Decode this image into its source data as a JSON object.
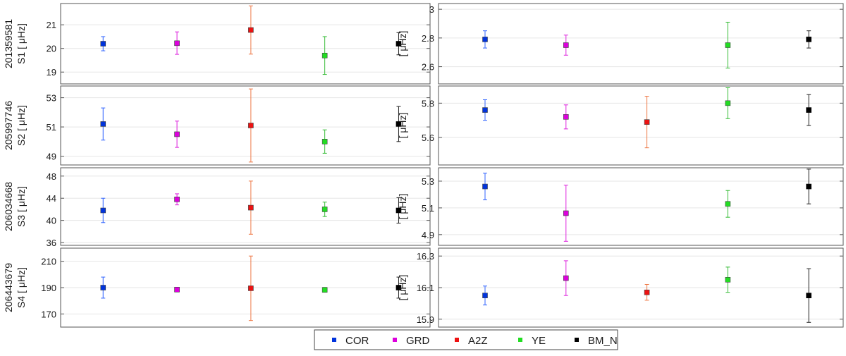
{
  "chart_data": {
    "type": "errorbar-scatter",
    "series_names": [
      "COR",
      "GRD",
      "A2Z",
      "YE",
      "BM_N"
    ],
    "colors": {
      "COR": "#0033dd",
      "GRD": "#dd00dd",
      "A2Z": "#ee1111",
      "YE": "#22dd22",
      "BM_N": "#000000"
    },
    "errorbar_colors": {
      "COR": "#3366ff",
      "GRD": "#dd22dd",
      "A2Z": "#ee7744",
      "YE": "#33bb33",
      "BM_N": "#222222"
    },
    "legend": {
      "placement": "bottom-center",
      "items": [
        "COR",
        "GRD",
        "A2Z",
        "YE",
        "BM_N"
      ]
    },
    "rows": [
      {
        "star_id": "201359581",
        "label": "S1",
        "left": {
          "unit": "[ μHz]",
          "ylim": [
            18.5,
            21.9
          ],
          "ticks": [
            "19",
            "20",
            "21"
          ],
          "points": [
            {
              "series": "COR",
              "y": 20.2,
              "lo": 19.9,
              "hi": 20.5
            },
            {
              "series": "GRD",
              "y": 20.22,
              "lo": 19.75,
              "hi": 20.7
            },
            {
              "series": "A2Z",
              "y": 20.78,
              "lo": 19.76,
              "hi": 21.8
            },
            {
              "series": "YE",
              "y": 19.7,
              "lo": 18.9,
              "hi": 20.5
            },
            {
              "series": "BM_N",
              "y": 20.2,
              "lo": 19.73,
              "hi": 20.67
            }
          ]
        },
        "right": {
          "unit": "[ μHz]",
          "ylim": [
            2.48,
            3.04
          ],
          "ticks": [
            "2.6",
            "2.8",
            "3"
          ],
          "points": [
            {
              "series": "COR",
              "y": 2.79,
              "lo": 2.73,
              "hi": 2.85
            },
            {
              "series": "GRD",
              "y": 2.75,
              "lo": 2.68,
              "hi": 2.82
            },
            {
              "series": "YE",
              "y": 2.75,
              "lo": 2.59,
              "hi": 2.91
            },
            {
              "series": "BM_N",
              "y": 2.79,
              "lo": 2.73,
              "hi": 2.85
            }
          ]
        }
      },
      {
        "star_id": "205997746",
        "label": "S2",
        "left": {
          "unit": "[ μHz]",
          "ylim": [
            48.4,
            53.8
          ],
          "ticks": [
            "49",
            "51",
            "53"
          ],
          "points": [
            {
              "series": "COR",
              "y": 51.2,
              "lo": 50.1,
              "hi": 52.3
            },
            {
              "series": "GRD",
              "y": 50.5,
              "lo": 49.6,
              "hi": 51.4
            },
            {
              "series": "A2Z",
              "y": 51.1,
              "lo": 48.6,
              "hi": 53.6
            },
            {
              "series": "YE",
              "y": 50.0,
              "lo": 49.2,
              "hi": 50.8
            },
            {
              "series": "BM_N",
              "y": 51.2,
              "lo": 50.0,
              "hi": 52.4
            }
          ]
        },
        "right": {
          "unit": "[ μHz]",
          "ylim": [
            5.44,
            5.9
          ],
          "ticks": [
            "5.6",
            "5.8"
          ],
          "points": [
            {
              "series": "COR",
              "y": 5.76,
              "lo": 5.7,
              "hi": 5.82
            },
            {
              "series": "GRD",
              "y": 5.72,
              "lo": 5.65,
              "hi": 5.79
            },
            {
              "series": "A2Z",
              "y": 5.69,
              "lo": 5.54,
              "hi": 5.84
            },
            {
              "series": "YE",
              "y": 5.8,
              "lo": 5.71,
              "hi": 5.89
            },
            {
              "series": "BM_N",
              "y": 5.76,
              "lo": 5.67,
              "hi": 5.85
            }
          ]
        }
      },
      {
        "star_id": "206034668",
        "label": "S3",
        "left": {
          "unit": "[ μHz]",
          "ylim": [
            35.5,
            49.5
          ],
          "ticks": [
            "36",
            "40",
            "44",
            "48"
          ],
          "points": [
            {
              "series": "COR",
              "y": 41.8,
              "lo": 39.6,
              "hi": 44.0
            },
            {
              "series": "GRD",
              "y": 43.8,
              "lo": 42.8,
              "hi": 44.8
            },
            {
              "series": "A2Z",
              "y": 42.3,
              "lo": 37.5,
              "hi": 47.1
            },
            {
              "series": "YE",
              "y": 42.0,
              "lo": 40.7,
              "hi": 43.3
            },
            {
              "series": "BM_N",
              "y": 41.8,
              "lo": 39.5,
              "hi": 44.1
            }
          ]
        },
        "right": {
          "unit": "[ μHz]",
          "ylim": [
            4.82,
            5.4
          ],
          "ticks": [
            "4.9",
            "5.1",
            "5.3"
          ],
          "points": [
            {
              "series": "COR",
              "y": 5.26,
              "lo": 5.16,
              "hi": 5.36
            },
            {
              "series": "GRD",
              "y": 5.06,
              "lo": 4.85,
              "hi": 5.27
            },
            {
              "series": "YE",
              "y": 5.13,
              "lo": 5.03,
              "hi": 5.23
            },
            {
              "series": "BM_N",
              "y": 5.26,
              "lo": 5.13,
              "hi": 5.39
            }
          ]
        }
      },
      {
        "star_id": "206443679",
        "label": "S4",
        "left": {
          "unit": "[ μHz]",
          "ylim": [
            160,
            220
          ],
          "ticks": [
            "170",
            "190",
            "210"
          ],
          "points": [
            {
              "series": "COR",
              "y": 190,
              "lo": 182,
              "hi": 198
            },
            {
              "series": "GRD",
              "y": 188.5,
              "lo": 187,
              "hi": 190
            },
            {
              "series": "A2Z",
              "y": 189.5,
              "lo": 165,
              "hi": 214
            },
            {
              "series": "YE",
              "y": 188.3,
              "lo": 186.5,
              "hi": 190.1
            },
            {
              "series": "BM_N",
              "y": 190,
              "lo": 182,
              "hi": 198
            }
          ]
        },
        "right": {
          "unit": "[ μHz]",
          "ylim": [
            15.85,
            16.35
          ],
          "ticks": [
            "15.9",
            "16.1",
            "16.3"
          ],
          "points": [
            {
              "series": "COR",
              "y": 16.05,
              "lo": 15.99,
              "hi": 16.11
            },
            {
              "series": "GRD",
              "y": 16.16,
              "lo": 16.05,
              "hi": 16.27
            },
            {
              "series": "A2Z",
              "y": 16.07,
              "lo": 16.02,
              "hi": 16.12
            },
            {
              "series": "YE",
              "y": 16.15,
              "lo": 16.07,
              "hi": 16.23
            },
            {
              "series": "BM_N",
              "y": 16.05,
              "lo": 15.88,
              "hi": 16.22
            }
          ]
        }
      }
    ]
  }
}
